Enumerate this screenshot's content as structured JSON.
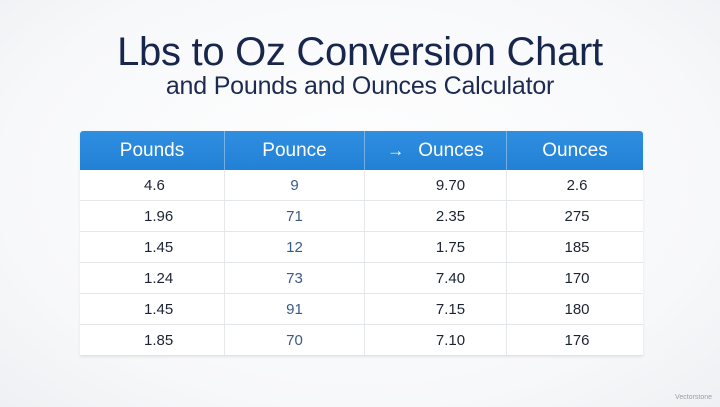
{
  "title": "Lbs to Oz Conversion Chart",
  "subtitle": "and Pounds and Ounces Calculator",
  "table": {
    "headers": [
      "Pounds",
      "Pounce",
      "Ounces",
      "Ounces"
    ],
    "header_arrow": "→",
    "rows": [
      [
        "4.6",
        "9",
        "9.70",
        "2.6"
      ],
      [
        "1.96",
        "71",
        "2.35",
        "275"
      ],
      [
        "1.45",
        "12",
        "1.75",
        "185"
      ],
      [
        "1.24",
        "73",
        "7.40",
        "170"
      ],
      [
        "1.45",
        "91",
        "7.15",
        "180"
      ],
      [
        "1.85",
        "70",
        "7.10",
        "176"
      ]
    ]
  },
  "watermark": "Vectorstone",
  "colors": {
    "header_bg": "#2281d6",
    "title": "#17264d"
  }
}
